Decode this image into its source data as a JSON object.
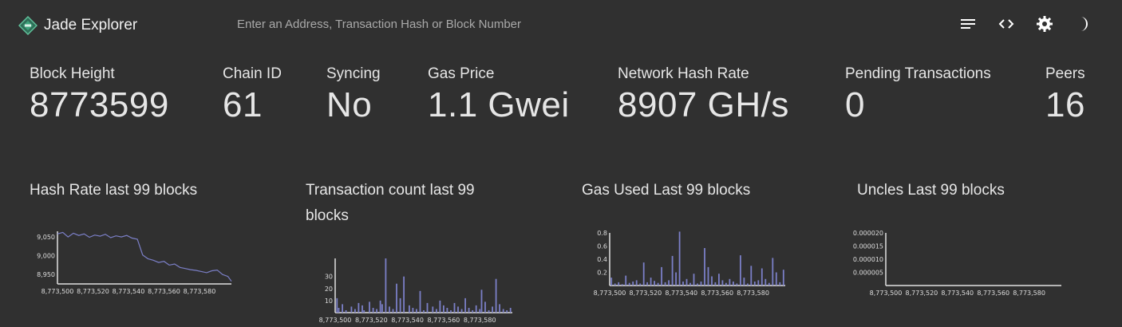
{
  "header": {
    "title": "Jade Explorer",
    "search_placeholder": "Enter an Address, Transaction Hash or Block Number",
    "icons": [
      "list-icon",
      "code-icon",
      "gear-icon",
      "moon-icon"
    ]
  },
  "stats": {
    "block_height": {
      "label": "Block Height",
      "value": "8773599"
    },
    "chain_id": {
      "label": "Chain ID",
      "value": "61"
    },
    "syncing": {
      "label": "Syncing",
      "value": "No"
    },
    "gas_price": {
      "label": "Gas Price",
      "value": "1.1 Gwei"
    },
    "hash_rate": {
      "label": "Network Hash Rate",
      "value": "8907 GH/s"
    },
    "pending": {
      "label": "Pending Transactions",
      "value": "0"
    },
    "peers": {
      "label": "Peers",
      "value": "16"
    }
  },
  "colors": {
    "background": "#303030",
    "text": "#e6e6e6",
    "series": "#7b7fc7",
    "axis": "#e0e0e0",
    "logo": "#3ea37c"
  },
  "chart_data": [
    {
      "type": "line",
      "title": "Hash Rate last 99 blocks",
      "x": [
        8773500,
        8773503,
        8773506,
        8773509,
        8773512,
        8773515,
        8773518,
        8773521,
        8773524,
        8773527,
        8773530,
        8773533,
        8773536,
        8773539,
        8773542,
        8773545,
        8773548,
        8773551,
        8773554,
        8773557,
        8773560,
        8773563,
        8773566,
        8773569,
        8773572,
        8773575,
        8773578,
        8773581,
        8773584,
        8773587,
        8773590,
        8773593,
        8773596,
        8773598
      ],
      "y": [
        9058,
        9062,
        9050,
        9060,
        9054,
        9058,
        9049,
        9055,
        9052,
        9057,
        9048,
        9053,
        9050,
        9054,
        9047,
        9044,
        9002,
        8992,
        8988,
        8982,
        8985,
        8975,
        8978,
        8969,
        8966,
        8963,
        8961,
        8958,
        8955,
        8960,
        8962,
        8950,
        8945,
        8932
      ],
      "yticks": [
        8950,
        9000,
        9050
      ],
      "ytick_labels": [
        "8,950",
        "9,000",
        "9,050"
      ],
      "xticks": [
        8773500,
        8773520,
        8773540,
        8773560,
        8773580
      ],
      "xtick_labels": [
        "8,773,500",
        "8,773,520",
        "8,773,540",
        "8,773,560",
        "8,773,580"
      ],
      "xlim": [
        8773500,
        8773598
      ],
      "ylim": [
        8925,
        9065
      ]
    },
    {
      "type": "bar",
      "title": "Transaction count last 99 blocks",
      "x": [
        8773501,
        8773502,
        8773504,
        8773506,
        8773509,
        8773511,
        8773513,
        8773515,
        8773516,
        8773519,
        8773521,
        8773523,
        8773525,
        8773526,
        8773528,
        8773530,
        8773532,
        8773534,
        8773536,
        8773538,
        8773541,
        8773543,
        8773545,
        8773547,
        8773549,
        8773551,
        8773554,
        8773556,
        8773558,
        8773560,
        8773562,
        8773564,
        8773566,
        8773568,
        8773570,
        8773572,
        8773574,
        8773576,
        8773578,
        8773580,
        8773581,
        8773583,
        8773585,
        8773587,
        8773589,
        8773591,
        8773593,
        8773595,
        8773597
      ],
      "y": [
        12,
        4,
        7,
        2,
        5,
        3,
        8,
        6,
        2,
        9,
        4,
        3,
        10,
        7,
        45,
        5,
        3,
        24,
        12,
        30,
        6,
        4,
        3,
        18,
        2,
        8,
        5,
        3,
        10,
        6,
        4,
        2,
        8,
        5,
        3,
        12,
        4,
        2,
        6,
        3,
        19,
        9,
        2,
        5,
        28,
        7,
        3,
        2,
        4
      ],
      "yticks": [
        10,
        20,
        30
      ],
      "ytick_labels": [
        "10",
        "20",
        "30"
      ],
      "xticks": [
        8773500,
        8773520,
        8773540,
        8773560,
        8773580
      ],
      "xtick_labels": [
        "8,773,500",
        "8,773,520",
        "8,773,540",
        "8,773,560",
        "8,773,580"
      ],
      "xlim": [
        8773500,
        8773598
      ],
      "ylim": [
        0,
        45
      ]
    },
    {
      "type": "bar",
      "title": "Gas Used Last 99 blocks",
      "x": [
        8773501,
        8773503,
        8773505,
        8773507,
        8773509,
        8773511,
        8773513,
        8773515,
        8773517,
        8773519,
        8773521,
        8773523,
        8773525,
        8773527,
        8773529,
        8773531,
        8773533,
        8773535,
        8773537,
        8773539,
        8773541,
        8773543,
        8773545,
        8773547,
        8773549,
        8773551,
        8773553,
        8773555,
        8773557,
        8773559,
        8773561,
        8773563,
        8773565,
        8773567,
        8773569,
        8773571,
        8773573,
        8773575,
        8773577,
        8773579,
        8773581,
        8773583,
        8773585,
        8773587,
        8773589,
        8773591,
        8773593,
        8773595,
        8773597
      ],
      "y": [
        0.12,
        0.03,
        0.05,
        0.02,
        0.15,
        0.04,
        0.06,
        0.08,
        0.03,
        0.35,
        0.05,
        0.12,
        0.07,
        0.04,
        0.28,
        0.05,
        0.08,
        0.45,
        0.2,
        0.82,
        0.06,
        0.1,
        0.04,
        0.18,
        0.03,
        0.06,
        0.57,
        0.28,
        0.14,
        0.05,
        0.18,
        0.08,
        0.04,
        0.1,
        0.06,
        0.03,
        0.46,
        0.12,
        0.03,
        0.3,
        0.06,
        0.08,
        0.26,
        0.1,
        0.04,
        0.42,
        0.2,
        0.05,
        0.24
      ],
      "yticks": [
        0.2,
        0.4,
        0.6,
        0.8
      ],
      "ytick_labels": [
        "0.2",
        "0.4",
        "0.6",
        "0.8"
      ],
      "xticks": [
        8773500,
        8773520,
        8773540,
        8773560,
        8773580
      ],
      "xtick_labels": [
        "8,773,500",
        "8,773,520",
        "8,773,540",
        "8,773,560",
        "8,773,580"
      ],
      "xlim": [
        8773500,
        8773598
      ],
      "ylim": [
        0,
        0.8
      ]
    },
    {
      "type": "line",
      "title": "Uncles Last 99 blocks",
      "x": [],
      "y": [],
      "yticks": [
        5e-06,
        1e-05,
        1.5e-05,
        2e-05
      ],
      "ytick_labels": [
        "0.000005",
        "0.000010",
        "0.000015",
        "0.000020"
      ],
      "xticks": [
        8773500,
        8773520,
        8773540,
        8773560,
        8773580
      ],
      "xtick_labels": [
        "8,773,500",
        "8,773,520",
        "8,773,540",
        "8,773,560",
        "8,773,580"
      ],
      "xlim": [
        8773500,
        8773598
      ],
      "ylim": [
        0,
        2e-05
      ]
    }
  ]
}
